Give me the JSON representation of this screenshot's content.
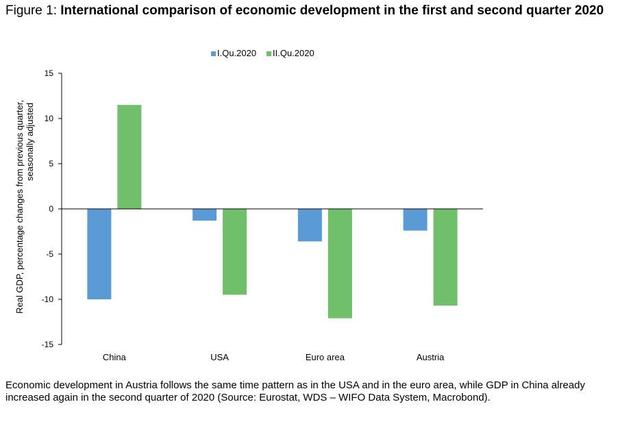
{
  "figure": {
    "prefix": "Figure 1: ",
    "title": "International comparison of economic development in the first and second quarter 2020",
    "caption": "Economic development in Austria follows the same time pattern as in the USA and in the euro area, while GDP in China already increased again in the second quarter of 2020 (Source: Eurostat, WDS – WIFO Data System, Macrobond)."
  },
  "chart_data": {
    "type": "bar",
    "categories": [
      "China",
      "USA",
      "Euro area",
      "Austria"
    ],
    "series": [
      {
        "name": "I.Qu.2020",
        "color": "#5b9bd5",
        "values": [
          -10.0,
          -1.3,
          -3.6,
          -2.4
        ]
      },
      {
        "name": "II.Qu.2020",
        "color": "#70bf6b",
        "values": [
          11.5,
          -9.5,
          -12.1,
          -10.7
        ]
      }
    ],
    "ylabel": "Real GDP, percentage changes from previous quarter, seasonally adjusted",
    "ylim": [
      -15,
      15
    ],
    "yticks": [
      15,
      10,
      5,
      0,
      -5,
      -10,
      -15
    ],
    "legend": "top",
    "grid": false
  }
}
